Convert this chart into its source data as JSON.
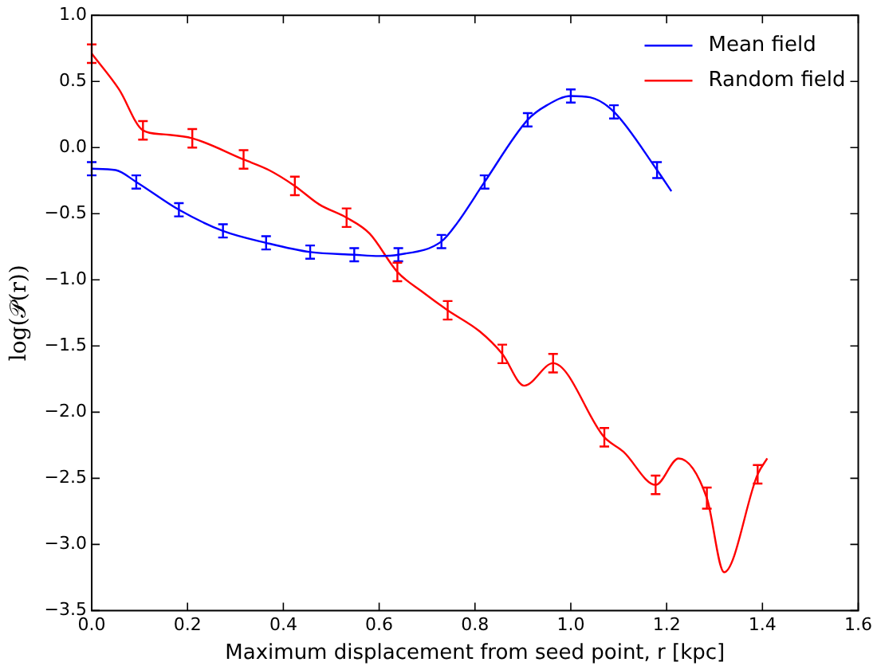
{
  "chart_data": {
    "type": "line",
    "xlabel": "Maximum displacement from seed point, r [kpc]",
    "ylabel": "log(𝒫(r))",
    "xlim": [
      0,
      1.6
    ],
    "xticks": [
      {
        "value": 0,
        "label": "0.0"
      },
      {
        "value": 0.2,
        "label": "0.2"
      },
      {
        "value": 0.4,
        "label": "0.4"
      },
      {
        "value": 0.6,
        "label": "0.6"
      },
      {
        "value": 0.8,
        "label": "0.8"
      },
      {
        "value": 1,
        "label": "1.0"
      },
      {
        "value": 1.2,
        "label": "1.2"
      },
      {
        "value": 1.4,
        "label": "1.4"
      },
      {
        "value": 1.6,
        "label": "1.6"
      }
    ],
    "ylim": [
      -3.5,
      1
    ],
    "yticks": [
      {
        "value": -3.5,
        "label": "−3.5"
      },
      {
        "value": -3,
        "label": "−3.0"
      },
      {
        "value": -2.5,
        "label": "−2.5"
      },
      {
        "value": -2,
        "label": "−2.0"
      },
      {
        "value": -1.5,
        "label": "−1.5"
      },
      {
        "value": -1,
        "label": "−1.0"
      },
      {
        "value": -0.5,
        "label": "−0.5"
      },
      {
        "value": 0,
        "label": "0.0"
      },
      {
        "value": 0.5,
        "label": "0.5"
      },
      {
        "value": 1,
        "label": "1.0"
      }
    ],
    "series": [
      {
        "name": "Mean field",
        "color": "#0000ff",
        "x": [
          0,
          0.05,
          0.093,
          0.182,
          0.274,
          0.364,
          0.456,
          0.548,
          0.6,
          0.64,
          0.73,
          0.763,
          0.82,
          0.91,
          0.95,
          1.0,
          1.04,
          1.09,
          1.18,
          1.21
        ],
        "values": [
          -0.16,
          -0.17,
          -0.26,
          -0.47,
          -0.63,
          -0.72,
          -0.79,
          -0.81,
          -0.82,
          -0.81,
          -0.71,
          -0.57,
          -0.26,
          0.21,
          0.32,
          0.39,
          0.38,
          0.27,
          -0.17,
          -0.33
        ],
        "errors": [
          0.05,
          null,
          0.05,
          0.05,
          0.05,
          0.05,
          0.05,
          0.05,
          null,
          0.05,
          0.05,
          null,
          0.05,
          0.05,
          null,
          0.05,
          null,
          0.05,
          0.06,
          null
        ]
      },
      {
        "name": "Random field",
        "color": "#ff0000",
        "x": [
          0,
          0.057,
          0.107,
          0.15,
          0.21,
          0.317,
          0.37,
          0.424,
          0.475,
          0.532,
          0.58,
          0.638,
          0.69,
          0.743,
          0.81,
          0.857,
          0.903,
          0.963,
          1.07,
          1.11,
          1.177,
          1.225,
          1.284,
          1.32,
          1.39,
          1.41
        ],
        "values": [
          0.71,
          0.44,
          0.13,
          0.1,
          0.07,
          -0.09,
          -0.17,
          -0.29,
          -0.43,
          -0.53,
          -0.65,
          -0.94,
          -1.09,
          -1.23,
          -1.39,
          -1.56,
          -1.8,
          -1.63,
          -2.19,
          -2.3,
          -2.55,
          -2.35,
          -2.65,
          -3.21,
          -2.47,
          -2.35
        ],
        "errors": [
          0.07,
          null,
          0.07,
          null,
          0.07,
          0.07,
          null,
          0.07,
          null,
          0.07,
          null,
          0.07,
          null,
          0.07,
          null,
          0.07,
          null,
          0.07,
          0.07,
          null,
          0.07,
          null,
          0.08,
          null,
          0.07,
          null
        ]
      }
    ],
    "legend": "top right",
    "grid": false,
    "line_style": "solid"
  }
}
